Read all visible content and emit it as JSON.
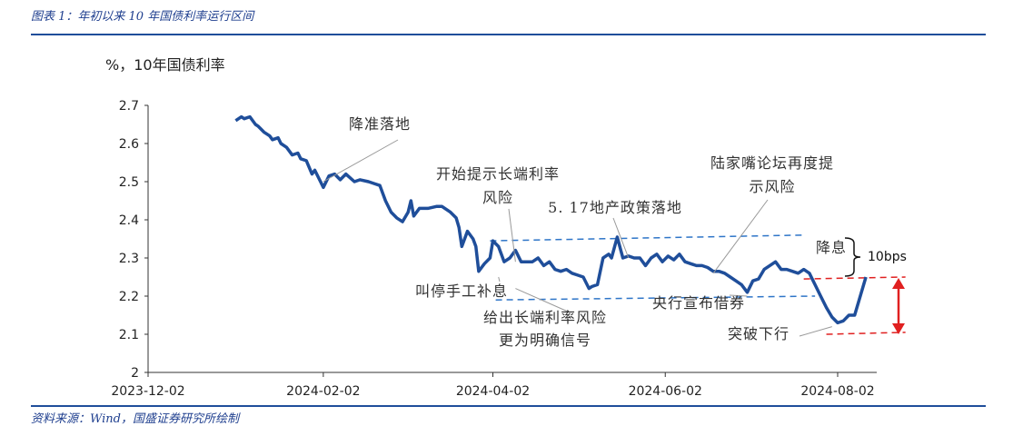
{
  "figure": {
    "caption": "图表 1：年初以来 10 年国债利率运行区间",
    "source": "资料来源：Wind，国盛证券研究所绘制"
  },
  "chart_data": {
    "type": "line",
    "ylabel": "%，10年国债利率",
    "ylim": [
      2.0,
      2.7
    ],
    "yticks": [
      2,
      2.1,
      2.2,
      2.3,
      2.4,
      2.5,
      2.6,
      2.7
    ],
    "xticks": [
      "2023-12-02",
      "2024-02-02",
      "2024-04-02",
      "2024-06-02",
      "2024-08-02"
    ],
    "series": [
      {
        "color": "#1f4e9a",
        "points": [
          [
            "2024-01-02",
            2.66
          ],
          [
            "2024-01-04",
            2.67
          ],
          [
            "2024-01-05",
            2.665
          ],
          [
            "2024-01-07",
            2.67
          ],
          [
            "2024-01-09",
            2.65
          ],
          [
            "2024-01-10",
            2.645
          ],
          [
            "2024-01-12",
            2.63
          ],
          [
            "2024-01-14",
            2.62
          ],
          [
            "2024-01-15",
            2.61
          ],
          [
            "2024-01-17",
            2.615
          ],
          [
            "2024-01-18",
            2.6
          ],
          [
            "2024-01-20",
            2.59
          ],
          [
            "2024-01-22",
            2.57
          ],
          [
            "2024-01-24",
            2.575
          ],
          [
            "2024-01-25",
            2.56
          ],
          [
            "2024-01-27",
            2.555
          ],
          [
            "2024-01-29",
            2.52
          ],
          [
            "2024-01-30",
            2.53
          ],
          [
            "2024-02-01",
            2.5
          ],
          [
            "2024-02-02",
            2.485
          ],
          [
            "2024-02-04",
            2.515
          ],
          [
            "2024-02-06",
            2.52
          ],
          [
            "2024-02-08",
            2.505
          ],
          [
            "2024-02-10",
            2.52
          ],
          [
            "2024-02-13",
            2.5
          ],
          [
            "2024-02-15",
            2.505
          ],
          [
            "2024-02-18",
            2.5
          ],
          [
            "2024-02-20",
            2.495
          ],
          [
            "2024-02-22",
            2.49
          ],
          [
            "2024-02-24",
            2.45
          ],
          [
            "2024-02-26",
            2.42
          ],
          [
            "2024-02-28",
            2.405
          ],
          [
            "2024-03-01",
            2.395
          ],
          [
            "2024-03-03",
            2.42
          ],
          [
            "2024-03-04",
            2.45
          ],
          [
            "2024-03-05",
            2.41
          ],
          [
            "2024-03-07",
            2.43
          ],
          [
            "2024-03-10",
            2.43
          ],
          [
            "2024-03-13",
            2.435
          ],
          [
            "2024-03-15",
            2.435
          ],
          [
            "2024-03-18",
            2.42
          ],
          [
            "2024-03-20",
            2.405
          ],
          [
            "2024-03-21",
            2.38
          ],
          [
            "2024-03-22",
            2.33
          ],
          [
            "2024-03-24",
            2.37
          ],
          [
            "2024-03-26",
            2.35
          ],
          [
            "2024-03-27",
            2.33
          ],
          [
            "2024-03-28",
            2.265
          ],
          [
            "2024-03-30",
            2.285
          ],
          [
            "2024-04-01",
            2.3
          ],
          [
            "2024-04-02",
            2.345
          ],
          [
            "2024-04-04",
            2.33
          ],
          [
            "2024-04-06",
            2.29
          ],
          [
            "2024-04-08",
            2.3
          ],
          [
            "2024-04-10",
            2.32
          ],
          [
            "2024-04-12",
            2.29
          ],
          [
            "2024-04-14",
            2.29
          ],
          [
            "2024-04-16",
            2.29
          ],
          [
            "2024-04-18",
            2.3
          ],
          [
            "2024-04-20",
            2.28
          ],
          [
            "2024-04-22",
            2.29
          ],
          [
            "2024-04-24",
            2.27
          ],
          [
            "2024-04-26",
            2.265
          ],
          [
            "2024-04-28",
            2.27
          ],
          [
            "2024-04-30",
            2.26
          ],
          [
            "2024-05-02",
            2.255
          ],
          [
            "2024-05-04",
            2.25
          ],
          [
            "2024-05-06",
            2.22
          ],
          [
            "2024-05-07",
            2.225
          ],
          [
            "2024-05-09",
            2.23
          ],
          [
            "2024-05-11",
            2.3
          ],
          [
            "2024-05-13",
            2.31
          ],
          [
            "2024-05-14",
            2.3
          ],
          [
            "2024-05-16",
            2.355
          ],
          [
            "2024-05-18",
            2.3
          ],
          [
            "2024-05-20",
            2.305
          ],
          [
            "2024-05-22",
            2.3
          ],
          [
            "2024-05-24",
            2.3
          ],
          [
            "2024-05-26",
            2.28
          ],
          [
            "2024-05-28",
            2.3
          ],
          [
            "2024-05-30",
            2.31
          ],
          [
            "2024-06-01",
            2.29
          ],
          [
            "2024-06-03",
            2.305
          ],
          [
            "2024-06-05",
            2.295
          ],
          [
            "2024-06-07",
            2.31
          ],
          [
            "2024-06-09",
            2.29
          ],
          [
            "2024-06-11",
            2.285
          ],
          [
            "2024-06-13",
            2.28
          ],
          [
            "2024-06-15",
            2.28
          ],
          [
            "2024-06-17",
            2.275
          ],
          [
            "2024-06-19",
            2.265
          ],
          [
            "2024-06-21",
            2.265
          ],
          [
            "2024-06-23",
            2.26
          ],
          [
            "2024-06-25",
            2.25
          ],
          [
            "2024-06-27",
            2.24
          ],
          [
            "2024-06-29",
            2.23
          ],
          [
            "2024-07-01",
            2.21
          ],
          [
            "2024-07-03",
            2.24
          ],
          [
            "2024-07-05",
            2.245
          ],
          [
            "2024-07-07",
            2.27
          ],
          [
            "2024-07-09",
            2.28
          ],
          [
            "2024-07-11",
            2.29
          ],
          [
            "2024-07-13",
            2.27
          ],
          [
            "2024-07-15",
            2.27
          ],
          [
            "2024-07-17",
            2.265
          ],
          [
            "2024-07-19",
            2.26
          ],
          [
            "2024-07-21",
            2.27
          ],
          [
            "2024-07-23",
            2.26
          ],
          [
            "2024-07-25",
            2.23
          ],
          [
            "2024-07-27",
            2.2
          ],
          [
            "2024-07-29",
            2.17
          ],
          [
            "2024-07-31",
            2.145
          ],
          [
            "2024-08-02",
            2.13
          ],
          [
            "2024-08-04",
            2.135
          ],
          [
            "2024-08-06",
            2.15
          ],
          [
            "2024-08-08",
            2.15
          ],
          [
            "2024-08-10",
            2.2
          ],
          [
            "2024-08-12",
            2.25
          ]
        ]
      }
    ],
    "annotations": [
      {
        "text": "降准落地",
        "x": "2024-02-02",
        "y": 2.5
      },
      {
        "text": "开始提示长端利率",
        "text2": "风险",
        "x": "2024-04-10",
        "y": 2.29
      },
      {
        "text": "5. 17地产政策落地",
        "x": "2024-05-20",
        "y": 2.3
      },
      {
        "text": "陆家嘴论坛再度提",
        "text2": "示风险",
        "x": "2024-06-19",
        "y": 2.26
      },
      {
        "text": "叫停手工补息",
        "x": "2024-04-04",
        "y": 2.25
      },
      {
        "text": "给出长端利率风险",
        "text2": "更为明确信号",
        "x": "2024-04-10",
        "y": 2.22
      },
      {
        "text": "央行宣布借券",
        "x": "2024-07-01",
        "y": 2.2
      },
      {
        "text": "降息",
        "x": "2024-07-22",
        "y": 2.27
      },
      {
        "text": "突破下行",
        "x": "2024-07-31",
        "y": 2.12
      },
      {
        "text": "10bps"
      }
    ],
    "reference_lines": [
      {
        "style": "dashed",
        "color": "#2e75c8",
        "from": [
          "2024-04-01",
          2.345
        ],
        "to": [
          "2024-07-21",
          2.36
        ]
      },
      {
        "style": "dashed",
        "color": "#2e75c8",
        "from": [
          "2024-04-03",
          2.19
        ],
        "to": [
          "2024-07-25",
          2.2
        ]
      },
      {
        "style": "dashed",
        "color": "#e02020",
        "from": [
          "2024-07-21",
          2.245
        ],
        "to": [
          "2024-08-26",
          2.25
        ]
      },
      {
        "style": "dashed",
        "color": "#e02020",
        "from": [
          "2024-07-29",
          2.1
        ],
        "to": [
          "2024-08-26",
          2.105
        ]
      }
    ],
    "grid": false
  }
}
